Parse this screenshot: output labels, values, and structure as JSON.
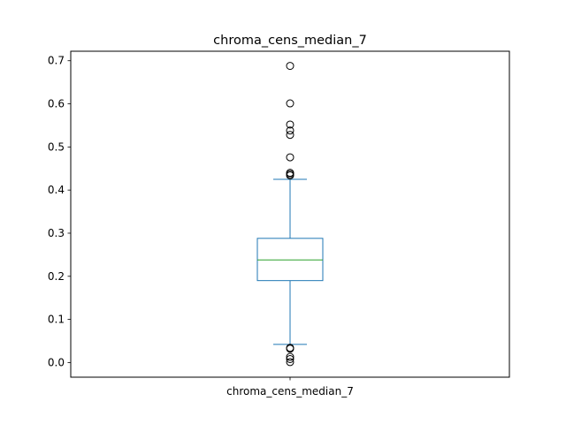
{
  "chart_data": {
    "type": "box",
    "title": "chroma_cens_median_7",
    "categories": [
      "chroma_cens_median_7"
    ],
    "ylim": [
      -0.034,
      0.722
    ],
    "yticks": [
      0.0,
      0.1,
      0.2,
      0.3,
      0.4,
      0.5,
      0.6,
      0.7
    ],
    "ytick_labels": [
      "0.0",
      "0.1",
      "0.2",
      "0.3",
      "0.4",
      "0.5",
      "0.6",
      "0.7"
    ],
    "grid": false,
    "legend": "none",
    "boxes": [
      {
        "category": "chroma_cens_median_7",
        "whisker_low": 0.042,
        "q1": 0.19,
        "median": 0.238,
        "q3": 0.288,
        "whisker_high": 0.425,
        "outliers": [
          0.688,
          0.601,
          0.552,
          0.538,
          0.528,
          0.476,
          0.44,
          0.437,
          0.434,
          0.034,
          0.032,
          0.013,
          0.008,
          0.001
        ]
      }
    ],
    "colors": {
      "box": "#1f77b4",
      "median": "#2ca02c",
      "outlier": "#000000",
      "axes": "#000000"
    }
  }
}
